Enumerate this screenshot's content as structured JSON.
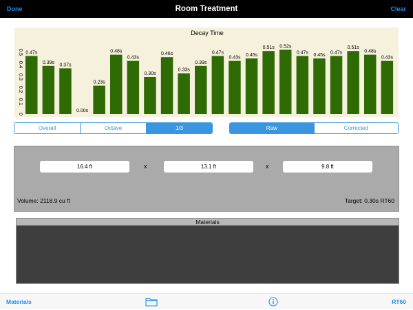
{
  "nav": {
    "left": "Done",
    "title": "Room Treatment",
    "right": "Clear"
  },
  "chart_data": {
    "type": "bar",
    "title": "Decay Time",
    "y_ticks": [
      "0",
      "0.1",
      "0.2",
      "0.3",
      "0.4",
      "0.5"
    ],
    "ylim": [
      0,
      0.55
    ],
    "labels": [
      "0.47s",
      "0.39s",
      "0.37s",
      "0.00s",
      "0.23s",
      "0.48s",
      "0.43s",
      "0.30s",
      "0.46s",
      "0.33s",
      "0.39s",
      "0.47s",
      "0.43s",
      "0.45s",
      "0.51s",
      "0.52s",
      "0.47s",
      "0.45s",
      "0.47s",
      "0.51s",
      "0.48s",
      "0.43s"
    ],
    "values": [
      0.47,
      0.39,
      0.37,
      0.0,
      0.23,
      0.48,
      0.43,
      0.3,
      0.46,
      0.33,
      0.39,
      0.47,
      0.43,
      0.45,
      0.51,
      0.52,
      0.47,
      0.45,
      0.47,
      0.51,
      0.48,
      0.43
    ],
    "bar_color": "#2f6b04",
    "background": "#f5f1dc"
  },
  "segments": {
    "band": [
      "Overall",
      "Octave",
      "1/3"
    ],
    "band_selected": 2,
    "mode": [
      "Raw",
      "Corrected"
    ],
    "mode_selected": 0
  },
  "dimensions": {
    "length": "16.4 ft",
    "width": "13.1 ft",
    "height": "9.8 ft",
    "sep1": "x",
    "sep2": "x",
    "volume": "Volume: 2118.9 cu ft",
    "target": "Target: 0.30s RT60"
  },
  "materials": {
    "header": "Materials"
  },
  "tabbar": {
    "left": "Materials",
    "folder_icon": "folder-icon",
    "info_icon": "info-icon",
    "right": "RT60"
  },
  "colors": {
    "accent": "#1c8cf3",
    "segment": "#3a96de",
    "bar": "#2f6b04"
  }
}
